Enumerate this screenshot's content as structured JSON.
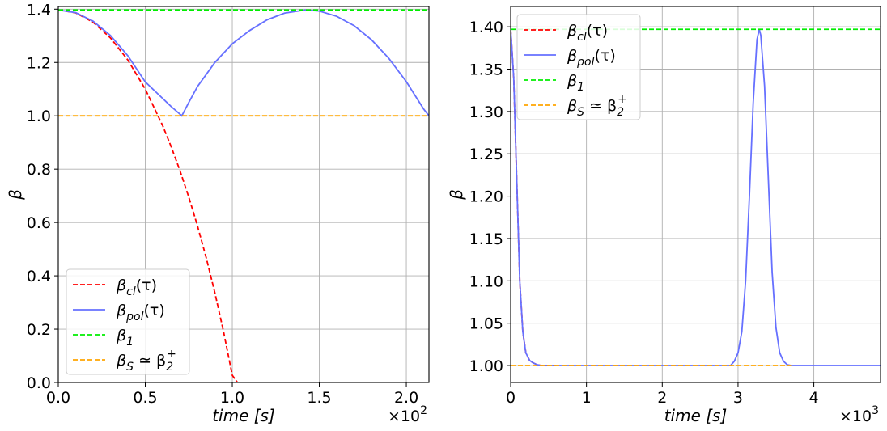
{
  "chart_data": [
    {
      "type": "line",
      "xlabel": "time [s]",
      "ylabel": "β",
      "x_offset_label": "×10^2",
      "xlim": [
        0,
        2.13
      ],
      "ylim": [
        0,
        1.41
      ],
      "xticks": [
        0,
        0.5,
        1.0,
        1.5,
        2.0
      ],
      "xtick_labels": [
        "0.0",
        "0.5",
        "1.0",
        "1.5",
        "2.0"
      ],
      "yticks": [
        0,
        0.2,
        0.4,
        0.6,
        0.8,
        1.0,
        1.2,
        1.4
      ],
      "ytick_labels": [
        "0.0",
        "0.2",
        "0.4",
        "0.6",
        "0.8",
        "1.0",
        "1.2",
        "1.4"
      ],
      "grid": true,
      "legend_position": "lower-left",
      "series": [
        {
          "name": "β_cl(τ)",
          "legend": {
            "base": "β",
            "sub": "cl",
            "suffix": "(τ)"
          },
          "color": "#ff0000",
          "style": "dashed",
          "x": [
            0,
            0.1,
            0.2,
            0.3,
            0.4,
            0.5,
            0.6,
            0.65,
            0.7,
            0.75,
            0.8,
            0.85,
            0.9,
            0.95,
            1.0,
            1.03,
            1.06,
            1.08,
            1.09,
            1.1
          ],
          "y": [
            1.397,
            1.386,
            1.351,
            1.292,
            1.209,
            1.1,
            0.963,
            0.882,
            0.793,
            0.695,
            0.587,
            0.468,
            0.336,
            0.19,
            0.027,
            0.0,
            0.0,
            0.0,
            0.0,
            0.0
          ]
        },
        {
          "name": "β_pol(τ)",
          "legend": {
            "base": "β",
            "sub": "pol",
            "suffix": "(τ)"
          },
          "color": "#6670ff",
          "style": "solid",
          "x": [
            0,
            0.1,
            0.2,
            0.3,
            0.4,
            0.5,
            0.6,
            0.65,
            0.71,
            0.75,
            0.8,
            0.9,
            1.0,
            1.1,
            1.2,
            1.3,
            1.42,
            1.5,
            1.6,
            1.7,
            1.8,
            1.9,
            2.0,
            2.1,
            2.13
          ],
          "y": [
            1.397,
            1.387,
            1.355,
            1.301,
            1.225,
            1.127,
            1.065,
            1.034,
            1.0,
            1.05,
            1.11,
            1.2,
            1.27,
            1.32,
            1.36,
            1.385,
            1.397,
            1.393,
            1.373,
            1.338,
            1.285,
            1.215,
            1.128,
            1.025,
            1.0
          ]
        },
        {
          "name": "β_1",
          "legend": {
            "base": "β",
            "sub": "1",
            "suffix": ""
          },
          "color": "#00ee00",
          "style": "dashed",
          "x": [
            0,
            2.13
          ],
          "y": [
            1.397,
            1.397
          ]
        },
        {
          "name": "β_S ≃ β_2^+",
          "legend": {
            "base": "β",
            "sub": "S",
            "suffix": " ≃ β",
            "sub2": "2",
            "sup2": "+"
          },
          "color": "#ffa500",
          "style": "dashed",
          "x": [
            0,
            2.13
          ],
          "y": [
            1.0,
            1.0
          ]
        }
      ]
    },
    {
      "type": "line",
      "xlabel": "time [s]",
      "ylabel": "β",
      "x_offset_label": "×10^3",
      "xlim": [
        0,
        4.88
      ],
      "ylim": [
        0.98,
        1.424
      ],
      "xticks": [
        0,
        1,
        2,
        3,
        4
      ],
      "xtick_labels": [
        "0",
        "1",
        "2",
        "3",
        "4"
      ],
      "yticks": [
        1.0,
        1.05,
        1.1,
        1.15,
        1.2,
        1.25,
        1.3,
        1.35,
        1.4
      ],
      "ytick_labels": [
        "1.00",
        "1.05",
        "1.10",
        "1.15",
        "1.20",
        "1.25",
        "1.30",
        "1.35",
        "1.40"
      ],
      "grid": true,
      "legend_position": "upper-left",
      "series": [
        {
          "name": "β_cl(τ)",
          "legend": {
            "base": "β",
            "sub": "cl",
            "suffix": "(τ)"
          },
          "color": "#ff0000",
          "style": "dashed",
          "x": [
            0,
            0.04,
            0.08,
            0.12,
            0.16,
            0.2,
            0.25,
            0.3,
            0.35,
            0.4,
            0.5,
            0.6
          ],
          "y": [
            1.397,
            1.34,
            1.22,
            1.1,
            1.04,
            1.015,
            1.006,
            1.003,
            1.001,
            1.0,
            1.0,
            1.0
          ]
        },
        {
          "name": "β_pol(τ)",
          "legend": {
            "base": "β",
            "sub": "pol",
            "suffix": "(τ)"
          },
          "color": "#6670ff",
          "style": "solid",
          "x": [
            0,
            0.04,
            0.08,
            0.12,
            0.16,
            0.2,
            0.25,
            0.3,
            0.35,
            0.4,
            0.5,
            1.0,
            2.0,
            2.9,
            2.95,
            3.0,
            3.05,
            3.1,
            3.15,
            3.2,
            3.25,
            3.28,
            3.3,
            3.35,
            3.4,
            3.45,
            3.5,
            3.55,
            3.6,
            3.65,
            3.7,
            4.0,
            4.88
          ],
          "y": [
            1.397,
            1.34,
            1.22,
            1.1,
            1.04,
            1.015,
            1.006,
            1.003,
            1.001,
            1.0,
            1.0,
            1.0,
            1.0,
            1.0,
            1.005,
            1.015,
            1.04,
            1.1,
            1.2,
            1.31,
            1.385,
            1.397,
            1.39,
            1.33,
            1.22,
            1.11,
            1.045,
            1.015,
            1.005,
            1.001,
            1.0,
            1.0,
            1.0
          ]
        },
        {
          "name": "β_1",
          "legend": {
            "base": "β",
            "sub": "1",
            "suffix": ""
          },
          "color": "#00ee00",
          "style": "dashed",
          "x": [
            0,
            4.88
          ],
          "y": [
            1.397,
            1.397
          ]
        },
        {
          "name": "β_S ≃ β_2^+",
          "legend": {
            "base": "β",
            "sub": "S",
            "suffix": " ≃ β",
            "sub2": "2",
            "sup2": "+"
          },
          "color": "#ffa500",
          "style": "dashed",
          "x": [
            0,
            3.7
          ],
          "y": [
            1.0,
            1.0
          ]
        }
      ]
    }
  ]
}
